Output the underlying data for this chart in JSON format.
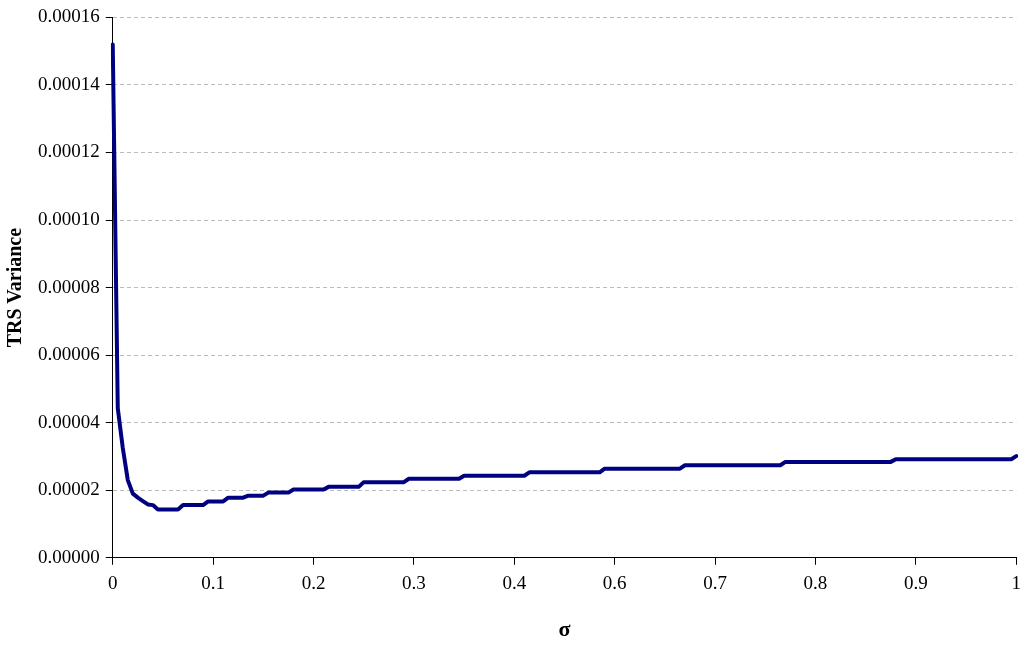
{
  "chart_data": {
    "type": "line",
    "xlabel": "σ",
    "ylabel": "TRS Variance",
    "categories": [
      "0",
      null,
      null,
      null,
      null,
      null,
      null,
      null,
      null,
      null,
      null,
      null,
      null,
      null,
      null,
      null,
      null,
      null,
      null,
      null,
      "0.1",
      null,
      null,
      null,
      null,
      null,
      null,
      null,
      null,
      null,
      null,
      null,
      null,
      null,
      null,
      null,
      null,
      null,
      null,
      null,
      "0.2",
      null,
      null,
      null,
      null,
      null,
      null,
      null,
      null,
      null,
      null,
      null,
      null,
      null,
      null,
      null,
      null,
      null,
      null,
      null,
      "0.3",
      null,
      null,
      null,
      null,
      null,
      null,
      null,
      null,
      null,
      null,
      null,
      null,
      null,
      null,
      null,
      null,
      null,
      null,
      null,
      "0.4",
      null,
      null,
      null,
      null,
      null,
      null,
      null,
      null,
      null,
      null,
      null,
      null,
      null,
      null,
      null,
      null,
      null,
      null,
      null,
      "0.6",
      null,
      null,
      null,
      null,
      null,
      null,
      null,
      null,
      null,
      null,
      null,
      null,
      null,
      null,
      null,
      null,
      null,
      null,
      null,
      "0.7",
      null,
      null,
      null,
      null,
      null,
      null,
      null,
      null,
      null,
      null,
      null,
      null,
      null,
      null,
      null,
      null,
      null,
      null,
      null,
      "0.8",
      null,
      null,
      null,
      null,
      null,
      null,
      null,
      null,
      null,
      null,
      null,
      null,
      null,
      null,
      null,
      null,
      null,
      null,
      null,
      "0.9",
      null,
      null,
      null,
      null,
      null,
      null,
      null,
      null,
      null,
      null,
      null,
      null,
      null,
      null,
      null,
      null,
      null,
      null,
      null,
      "1"
    ],
    "series": [
      {
        "color": "#000080",
        "values": [
          0.000152,
          4.43e-05,
          3.25e-05,
          2.3e-05,
          1.9e-05,
          1.78e-05,
          1.68e-05,
          1.58e-05,
          1.56e-05,
          1.43e-05,
          1.43e-05,
          1.43e-05,
          1.43e-05,
          1.43e-05,
          1.56e-05,
          1.56e-05,
          1.56e-05,
          1.56e-05,
          1.56e-05,
          1.67e-05,
          1.67e-05,
          1.67e-05,
          1.67e-05,
          1.78e-05,
          1.78e-05,
          1.78e-05,
          1.78e-05,
          1.84e-05,
          1.84e-05,
          1.84e-05,
          1.84e-05,
          1.93e-05,
          1.93e-05,
          1.93e-05,
          1.93e-05,
          1.93e-05,
          2.02e-05,
          2.02e-05,
          2.02e-05,
          2.02e-05,
          2.02e-05,
          2.02e-05,
          2.02e-05,
          2.1e-05,
          2.1e-05,
          2.1e-05,
          2.1e-05,
          2.1e-05,
          2.1e-05,
          2.1e-05,
          2.24e-05,
          2.24e-05,
          2.24e-05,
          2.24e-05,
          2.24e-05,
          2.24e-05,
          2.24e-05,
          2.24e-05,
          2.24e-05,
          2.34e-05,
          2.34e-05,
          2.34e-05,
          2.34e-05,
          2.34e-05,
          2.34e-05,
          2.34e-05,
          2.34e-05,
          2.34e-05,
          2.34e-05,
          2.34e-05,
          2.43e-05,
          2.43e-05,
          2.43e-05,
          2.43e-05,
          2.43e-05,
          2.43e-05,
          2.43e-05,
          2.43e-05,
          2.43e-05,
          2.43e-05,
          2.43e-05,
          2.43e-05,
          2.43e-05,
          2.53e-05,
          2.53e-05,
          2.53e-05,
          2.53e-05,
          2.53e-05,
          2.53e-05,
          2.53e-05,
          2.53e-05,
          2.53e-05,
          2.53e-05,
          2.53e-05,
          2.53e-05,
          2.53e-05,
          2.53e-05,
          2.53e-05,
          2.64e-05,
          2.64e-05,
          2.64e-05,
          2.64e-05,
          2.64e-05,
          2.64e-05,
          2.64e-05,
          2.64e-05,
          2.64e-05,
          2.64e-05,
          2.64e-05,
          2.64e-05,
          2.64e-05,
          2.64e-05,
          2.64e-05,
          2.64e-05,
          2.74e-05,
          2.74e-05,
          2.74e-05,
          2.74e-05,
          2.74e-05,
          2.74e-05,
          2.74e-05,
          2.74e-05,
          2.74e-05,
          2.74e-05,
          2.74e-05,
          2.74e-05,
          2.74e-05,
          2.74e-05,
          2.74e-05,
          2.74e-05,
          2.74e-05,
          2.74e-05,
          2.74e-05,
          2.74e-05,
          2.84e-05,
          2.84e-05,
          2.84e-05,
          2.84e-05,
          2.84e-05,
          2.84e-05,
          2.84e-05,
          2.84e-05,
          2.84e-05,
          2.84e-05,
          2.84e-05,
          2.84e-05,
          2.84e-05,
          2.84e-05,
          2.84e-05,
          2.84e-05,
          2.84e-05,
          2.84e-05,
          2.84e-05,
          2.84e-05,
          2.84e-05,
          2.84e-05,
          2.92e-05,
          2.92e-05,
          2.92e-05,
          2.92e-05,
          2.92e-05,
          2.92e-05,
          2.92e-05,
          2.92e-05,
          2.92e-05,
          2.92e-05,
          2.92e-05,
          2.92e-05,
          2.92e-05,
          2.92e-05,
          2.92e-05,
          2.92e-05,
          2.92e-05,
          2.92e-05,
          2.92e-05,
          2.92e-05,
          2.92e-05,
          2.92e-05,
          2.92e-05,
          2.92e-05,
          3.01e-05
        ]
      }
    ],
    "ylim": [
      0,
      0.00016
    ],
    "yticks": [
      {
        "value": 0,
        "label": "0.00000"
      },
      {
        "value": 2e-05,
        "label": "0.00002"
      },
      {
        "value": 4e-05,
        "label": "0.00004"
      },
      {
        "value": 6e-05,
        "label": "0.00006"
      },
      {
        "value": 8e-05,
        "label": "0.00008"
      },
      {
        "value": 0.0001,
        "label": "0.00010"
      },
      {
        "value": 0.00012,
        "label": "0.00012"
      },
      {
        "value": 0.00014,
        "label": "0.00014"
      },
      {
        "value": 0.00016,
        "label": "0.00016"
      }
    ],
    "grid": "y",
    "legend": false,
    "marker": "none",
    "line_style": "solid"
  }
}
